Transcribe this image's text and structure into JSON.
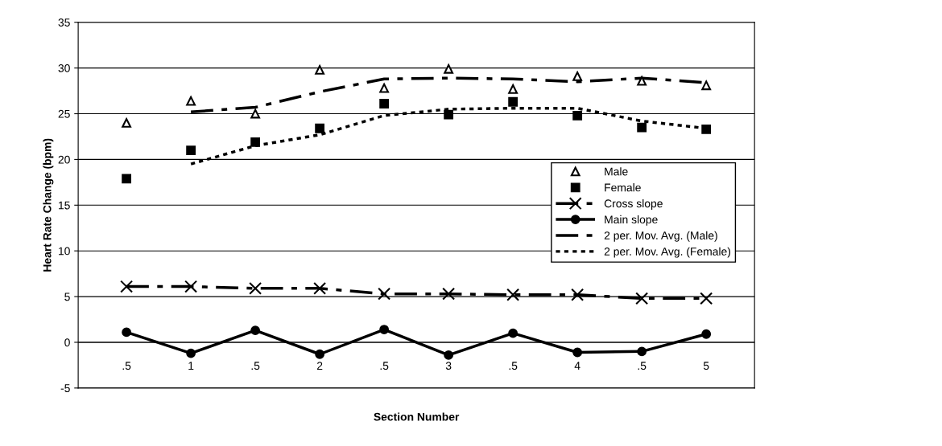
{
  "chart_data": {
    "type": "line",
    "xlabel": "Section Number",
    "ylabel": "Heart Rate Change (bpm)",
    "categories": [
      ".5",
      "1",
      ".5",
      "2",
      ".5",
      "3",
      ".5",
      "4",
      ".5",
      "5"
    ],
    "ylim": [
      -5,
      35
    ],
    "yticks": [
      -5,
      0,
      5,
      10,
      15,
      20,
      25,
      30,
      35
    ],
    "grid": "y",
    "legend": "center right",
    "series": [
      {
        "name": "Male",
        "type": "scatter",
        "color": "#000000",
        "marker": "triangle",
        "values": [
          24,
          26.4,
          25,
          29.8,
          27.8,
          29.9,
          27.7,
          29.1,
          28.6,
          28.1
        ]
      },
      {
        "name": "Female",
        "type": "scatter",
        "color": "#000000",
        "marker": "square",
        "values": [
          17.9,
          21,
          21.9,
          23.4,
          26.1,
          24.9,
          26.3,
          24.8,
          23.5,
          23.3
        ]
      },
      {
        "name": "Cross slope",
        "type": "line",
        "color": "#000000",
        "marker": "cross",
        "line_style": "dashed",
        "values": [
          6.1,
          6.1,
          5.9,
          5.9,
          5.3,
          5.3,
          5.2,
          5.2,
          4.8,
          4.8
        ]
      },
      {
        "name": "Main slope",
        "type": "line",
        "color": "#000000",
        "marker": "circle",
        "line_style": "solid",
        "values": [
          1.1,
          -1.2,
          1.3,
          -1.3,
          1.4,
          -1.4,
          1.0,
          -1.1,
          -1.0,
          0.9
        ]
      },
      {
        "name": "2 per. Mov. Avg. (Male)",
        "type": "line",
        "color": "#000000",
        "marker": "none",
        "line_style": "dashed",
        "values": [
          null,
          25.2,
          25.7,
          27.4,
          28.8,
          28.9,
          28.8,
          28.5,
          28.9,
          28.4
        ]
      },
      {
        "name": "2 per. Mov. Avg. (Female)",
        "type": "line",
        "color": "#000000",
        "marker": "none",
        "line_style": "dotted",
        "values": [
          null,
          19.5,
          21.5,
          22.7,
          24.8,
          25.5,
          25.6,
          25.6,
          24.2,
          23.4
        ]
      }
    ]
  }
}
